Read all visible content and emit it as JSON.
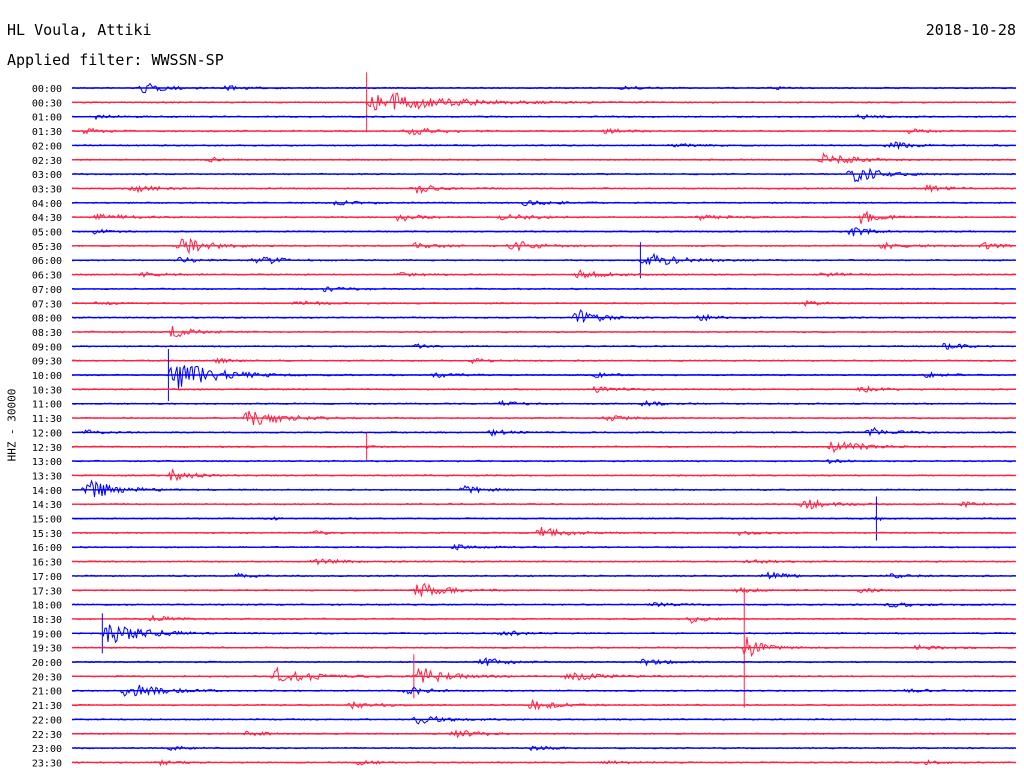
{
  "header": {
    "station": "HL Voula, Attiki",
    "date": "2018-10-28",
    "filter": "Applied filter: WWSSN-SP"
  },
  "channel_label": "HHZ - 30000",
  "colors": {
    "even_row": "#0000ff",
    "odd_row": "#ff2244"
  },
  "chart_data": {
    "type": "line",
    "ylabel": "HHZ - 30000",
    "title": "HL Voula, Attiki",
    "subtitle": "Applied filter: WWSSN-SP",
    "grid": false,
    "row_labels": [
      "00:00",
      "00:30",
      "01:00",
      "01:30",
      "02:00",
      "02:30",
      "03:00",
      "03:30",
      "04:00",
      "04:30",
      "05:00",
      "05:30",
      "06:00",
      "06:30",
      "07:00",
      "07:30",
      "08:00",
      "08:30",
      "09:00",
      "09:30",
      "10:00",
      "10:30",
      "11:00",
      "11:30",
      "12:00",
      "12:30",
      "13:00",
      "13:30",
      "14:00",
      "14:30",
      "15:00",
      "15:30",
      "16:00",
      "16:30",
      "17:00",
      "17:30",
      "18:00",
      "18:30",
      "19:00",
      "19:30",
      "20:00",
      "20:30",
      "21:00",
      "21:30",
      "22:00",
      "22:30",
      "23:00",
      "23:30"
    ],
    "row_minutes": 30,
    "bursts": [
      {
        "row": 0,
        "t": 0.07,
        "w": 0.04,
        "a": 7
      },
      {
        "row": 0,
        "t": 0.16,
        "w": 0.03,
        "a": 3
      },
      {
        "row": 0,
        "t": 0.58,
        "w": 0.03,
        "a": 3
      },
      {
        "row": 0,
        "t": 0.74,
        "w": 0.02,
        "a": 2
      },
      {
        "row": 1,
        "t": 0.31,
        "w": 0.12,
        "a": 15,
        "spike": 30
      },
      {
        "row": 2,
        "t": 0.02,
        "w": 0.04,
        "a": 3
      },
      {
        "row": 2,
        "t": 0.83,
        "w": 0.03,
        "a": 3
      },
      {
        "row": 3,
        "t": 0.01,
        "w": 0.03,
        "a": 4
      },
      {
        "row": 3,
        "t": 0.35,
        "w": 0.06,
        "a": 5
      },
      {
        "row": 3,
        "t": 0.56,
        "w": 0.04,
        "a": 3
      },
      {
        "row": 3,
        "t": 0.88,
        "w": 0.04,
        "a": 3
      },
      {
        "row": 4,
        "t": 0.63,
        "w": 0.04,
        "a": 3
      },
      {
        "row": 4,
        "t": 0.86,
        "w": 0.04,
        "a": 5
      },
      {
        "row": 5,
        "t": 0.14,
        "w": 0.03,
        "a": 4
      },
      {
        "row": 5,
        "t": 0.79,
        "w": 0.05,
        "a": 10
      },
      {
        "row": 6,
        "t": 0.82,
        "w": 0.05,
        "a": 12
      },
      {
        "row": 7,
        "t": 0.06,
        "w": 0.04,
        "a": 6
      },
      {
        "row": 7,
        "t": 0.36,
        "w": 0.04,
        "a": 6
      },
      {
        "row": 7,
        "t": 0.9,
        "w": 0.04,
        "a": 4
      },
      {
        "row": 8,
        "t": 0.27,
        "w": 0.05,
        "a": 3
      },
      {
        "row": 8,
        "t": 0.47,
        "w": 0.06,
        "a": 3
      },
      {
        "row": 9,
        "t": 0.02,
        "w": 0.05,
        "a": 5
      },
      {
        "row": 9,
        "t": 0.34,
        "w": 0.04,
        "a": 6
      },
      {
        "row": 9,
        "t": 0.45,
        "w": 0.06,
        "a": 4
      },
      {
        "row": 9,
        "t": 0.66,
        "w": 0.05,
        "a": 4
      },
      {
        "row": 9,
        "t": 0.83,
        "w": 0.04,
        "a": 9
      },
      {
        "row": 10,
        "t": 0.02,
        "w": 0.03,
        "a": 3
      },
      {
        "row": 10,
        "t": 0.82,
        "w": 0.04,
        "a": 6
      },
      {
        "row": 11,
        "t": 0.11,
        "w": 0.05,
        "a": 11
      },
      {
        "row": 11,
        "t": 0.36,
        "w": 0.04,
        "a": 5
      },
      {
        "row": 11,
        "t": 0.46,
        "w": 0.05,
        "a": 7
      },
      {
        "row": 11,
        "t": 0.85,
        "w": 0.05,
        "a": 4
      },
      {
        "row": 11,
        "t": 0.96,
        "w": 0.04,
        "a": 4
      },
      {
        "row": 12,
        "t": 0.11,
        "w": 0.03,
        "a": 4
      },
      {
        "row": 12,
        "t": 0.19,
        "w": 0.04,
        "a": 8
      },
      {
        "row": 12,
        "t": 0.6,
        "w": 0.06,
        "a": 10,
        "spike": 18
      },
      {
        "row": 13,
        "t": 0.07,
        "w": 0.04,
        "a": 3
      },
      {
        "row": 13,
        "t": 0.34,
        "w": 0.04,
        "a": 3
      },
      {
        "row": 13,
        "t": 0.53,
        "w": 0.06,
        "a": 5
      },
      {
        "row": 13,
        "t": 0.79,
        "w": 0.04,
        "a": 3
      },
      {
        "row": 14,
        "t": 0.26,
        "w": 0.05,
        "a": 3
      },
      {
        "row": 15,
        "t": 0.02,
        "w": 0.03,
        "a": 3
      },
      {
        "row": 15,
        "t": 0.23,
        "w": 0.05,
        "a": 3
      },
      {
        "row": 15,
        "t": 0.77,
        "w": 0.04,
        "a": 3
      },
      {
        "row": 16,
        "t": 0.53,
        "w": 0.04,
        "a": 12
      },
      {
        "row": 16,
        "t": 0.66,
        "w": 0.04,
        "a": 4
      },
      {
        "row": 17,
        "t": 0.1,
        "w": 0.04,
        "a": 9
      },
      {
        "row": 18,
        "t": 0.36,
        "w": 0.03,
        "a": 3
      },
      {
        "row": 18,
        "t": 0.92,
        "w": 0.03,
        "a": 6
      },
      {
        "row": 19,
        "t": 0.15,
        "w": 0.03,
        "a": 3
      },
      {
        "row": 19,
        "t": 0.42,
        "w": 0.03,
        "a": 3
      },
      {
        "row": 20,
        "t": 0.1,
        "w": 0.08,
        "a": 18,
        "spike": 26
      },
      {
        "row": 20,
        "t": 0.38,
        "w": 0.04,
        "a": 3
      },
      {
        "row": 20,
        "t": 0.55,
        "w": 0.04,
        "a": 3
      },
      {
        "row": 20,
        "t": 0.9,
        "w": 0.04,
        "a": 3
      },
      {
        "row": 21,
        "t": 0.55,
        "w": 0.04,
        "a": 5
      },
      {
        "row": 21,
        "t": 0.83,
        "w": 0.04,
        "a": 4
      },
      {
        "row": 22,
        "t": 0.45,
        "w": 0.04,
        "a": 3
      },
      {
        "row": 22,
        "t": 0.6,
        "w": 0.04,
        "a": 3
      },
      {
        "row": 23,
        "t": 0.18,
        "w": 0.06,
        "a": 13
      },
      {
        "row": 23,
        "t": 0.56,
        "w": 0.04,
        "a": 4
      },
      {
        "row": 24,
        "t": 0.01,
        "w": 0.03,
        "a": 3
      },
      {
        "row": 24,
        "t": 0.44,
        "w": 0.03,
        "a": 5
      },
      {
        "row": 24,
        "t": 0.84,
        "w": 0.04,
        "a": 7
      },
      {
        "row": 25,
        "t": 0.31,
        "w": 0.01,
        "a": 2,
        "spike": 14
      },
      {
        "row": 25,
        "t": 0.8,
        "w": 0.05,
        "a": 10
      },
      {
        "row": 26,
        "t": 0.8,
        "w": 0.02,
        "a": 5
      },
      {
        "row": 27,
        "t": 0.1,
        "w": 0.04,
        "a": 8
      },
      {
        "row": 28,
        "t": 0.01,
        "w": 0.06,
        "a": 12
      },
      {
        "row": 28,
        "t": 0.41,
        "w": 0.04,
        "a": 5
      },
      {
        "row": 29,
        "t": 0.77,
        "w": 0.05,
        "a": 7
      },
      {
        "row": 29,
        "t": 0.94,
        "w": 0.04,
        "a": 3
      },
      {
        "row": 30,
        "t": 0.21,
        "w": 0.01,
        "a": 3
      },
      {
        "row": 30,
        "t": 0.85,
        "w": 0.01,
        "a": 4,
        "spike": 22
      },
      {
        "row": 31,
        "t": 0.25,
        "w": 0.03,
        "a": 3
      },
      {
        "row": 31,
        "t": 0.49,
        "w": 0.05,
        "a": 7
      },
      {
        "row": 31,
        "t": 0.7,
        "w": 0.04,
        "a": 3
      },
      {
        "row": 32,
        "t": 0.4,
        "w": 0.05,
        "a": 3
      },
      {
        "row": 33,
        "t": 0.25,
        "w": 0.05,
        "a": 4
      },
      {
        "row": 33,
        "t": 0.71,
        "w": 0.04,
        "a": 3
      },
      {
        "row": 34,
        "t": 0.17,
        "w": 0.03,
        "a": 4
      },
      {
        "row": 34,
        "t": 0.73,
        "w": 0.04,
        "a": 5
      },
      {
        "row": 34,
        "t": 0.86,
        "w": 0.04,
        "a": 3
      },
      {
        "row": 35,
        "t": 0.36,
        "w": 0.05,
        "a": 10
      },
      {
        "row": 35,
        "t": 0.7,
        "w": 0.04,
        "a": 3
      },
      {
        "row": 35,
        "t": 0.83,
        "w": 0.04,
        "a": 3
      },
      {
        "row": 36,
        "t": 0.61,
        "w": 0.04,
        "a": 3
      },
      {
        "row": 36,
        "t": 0.86,
        "w": 0.05,
        "a": 3
      },
      {
        "row": 37,
        "t": 0.08,
        "w": 0.04,
        "a": 4
      },
      {
        "row": 37,
        "t": 0.65,
        "w": 0.03,
        "a": 6
      },
      {
        "row": 38,
        "t": 0.03,
        "w": 0.07,
        "a": 14,
        "spike": 20
      },
      {
        "row": 38,
        "t": 0.45,
        "w": 0.04,
        "a": 4
      },
      {
        "row": 39,
        "t": 0.71,
        "w": 0.03,
        "a": 15,
        "spike": 60
      },
      {
        "row": 39,
        "t": 0.89,
        "w": 0.05,
        "a": 4
      },
      {
        "row": 40,
        "t": 0.43,
        "w": 0.04,
        "a": 7
      },
      {
        "row": 40,
        "t": 0.6,
        "w": 0.04,
        "a": 5
      },
      {
        "row": 41,
        "t": 0.21,
        "w": 0.06,
        "a": 12
      },
      {
        "row": 41,
        "t": 0.36,
        "w": 0.05,
        "a": 14,
        "spike": 22
      },
      {
        "row": 41,
        "t": 0.52,
        "w": 0.06,
        "a": 6
      },
      {
        "row": 42,
        "t": 0.05,
        "w": 0.06,
        "a": 11
      },
      {
        "row": 42,
        "t": 0.35,
        "w": 0.04,
        "a": 6
      },
      {
        "row": 42,
        "t": 0.88,
        "w": 0.04,
        "a": 3
      },
      {
        "row": 43,
        "t": 0.29,
        "w": 0.05,
        "a": 4
      },
      {
        "row": 43,
        "t": 0.48,
        "w": 0.05,
        "a": 7
      },
      {
        "row": 44,
        "t": 0.36,
        "w": 0.05,
        "a": 6
      },
      {
        "row": 45,
        "t": 0.18,
        "w": 0.04,
        "a": 3
      },
      {
        "row": 45,
        "t": 0.4,
        "w": 0.04,
        "a": 7
      },
      {
        "row": 46,
        "t": 0.1,
        "w": 0.03,
        "a": 3
      },
      {
        "row": 46,
        "t": 0.48,
        "w": 0.04,
        "a": 3
      },
      {
        "row": 47,
        "t": 0.09,
        "w": 0.03,
        "a": 4
      },
      {
        "row": 47,
        "t": 0.3,
        "w": 0.03,
        "a": 4
      },
      {
        "row": 47,
        "t": 0.56,
        "w": 0.04,
        "a": 3
      },
      {
        "row": 47,
        "t": 0.9,
        "w": 0.03,
        "a": 3
      }
    ]
  }
}
